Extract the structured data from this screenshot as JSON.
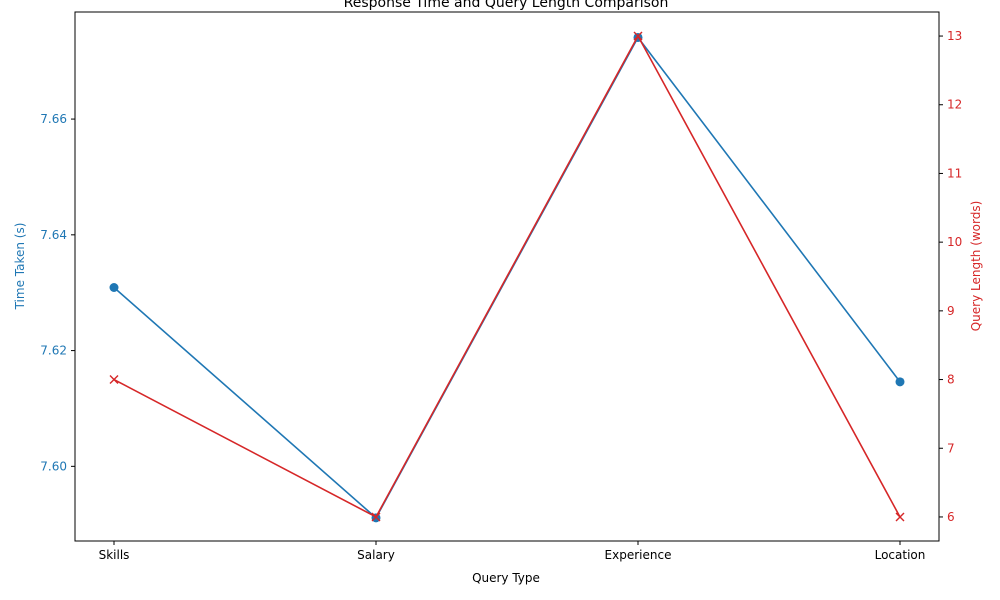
{
  "chart_data": {
    "type": "line",
    "title": "Response Time and Query Length Comparison",
    "xlabel": "Query Type",
    "categories": [
      "Skills",
      "Salary",
      "Experience",
      "Location"
    ],
    "y_left": {
      "label": "Time Taken (s)",
      "ticks": [
        "7.60",
        "7.62",
        "7.64",
        "7.66"
      ],
      "tick_values": [
        7.6,
        7.62,
        7.64,
        7.66
      ],
      "ylim": [
        7.5871,
        7.6785
      ],
      "color": "#1f77b4"
    },
    "y_right": {
      "label": "Query Length (words)",
      "ticks": [
        "6",
        "7",
        "8",
        "9",
        "10",
        "11",
        "12",
        "13"
      ],
      "tick_values": [
        6,
        7,
        8,
        9,
        10,
        11,
        12,
        13
      ],
      "ylim": [
        5.65,
        13.35
      ],
      "color": "#d62728"
    },
    "series": [
      {
        "axis": "left",
        "marker": "circle",
        "color": "#1f77b4",
        "values": [
          7.6309,
          7.5911,
          7.6741,
          7.6146
        ]
      },
      {
        "axis": "right",
        "marker": "x",
        "color": "#d62728",
        "values": [
          8,
          6,
          13,
          6
        ]
      }
    ],
    "grid": false
  }
}
